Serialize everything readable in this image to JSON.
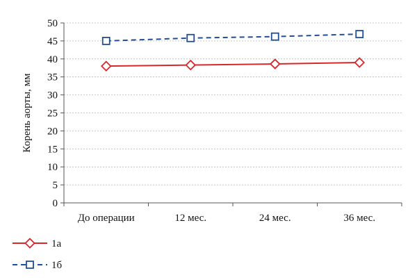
{
  "chart_data": {
    "type": "line",
    "categories": [
      "До операции",
      "12 мес.",
      "24 мес.",
      "36 мес."
    ],
    "ylabel": "Корень аорты, мм",
    "ylim": [
      0,
      50
    ],
    "yticks": [
      0,
      5,
      10,
      15,
      20,
      25,
      30,
      35,
      40,
      45,
      50
    ],
    "grid": true,
    "legend_placement": "bottom-left",
    "series": [
      {
        "name": "1а",
        "values": [
          38,
          38.3,
          38.6,
          39
        ],
        "color": "#d9262b",
        "marker": "diamond",
        "dashed": false
      },
      {
        "name": "1б",
        "values": [
          45,
          45.8,
          46.2,
          46.9
        ],
        "color": "#1f4e99",
        "marker": "square",
        "dashed": true
      }
    ]
  }
}
